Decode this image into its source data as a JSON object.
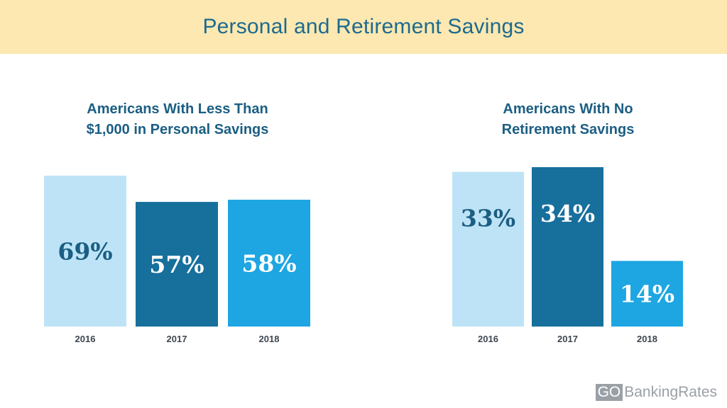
{
  "header": {
    "title": "Personal and Retirement Savings"
  },
  "colors": {
    "light": "#bee3f6",
    "dark": "#176f9c",
    "medium": "#1ea6e2",
    "value_dark_text": "#1b5e83",
    "value_light_text": "#ffffff"
  },
  "chart_data": [
    {
      "type": "bar",
      "title_lines": [
        "Americans With Less Than",
        "$1,000 in Personal Savings"
      ],
      "categories": [
        "2016",
        "2017",
        "2018"
      ],
      "values": [
        69,
        57,
        58
      ],
      "value_labels": [
        "69%",
        "57%",
        "58%"
      ],
      "ylim": [
        0,
        69
      ],
      "grid": false
    },
    {
      "type": "bar",
      "title_lines": [
        "Americans With No",
        "Retirement Savings"
      ],
      "categories": [
        "2016",
        "2017",
        "2018"
      ],
      "values": [
        33,
        34,
        14
      ],
      "value_labels": [
        "33%",
        "34%",
        "14%"
      ],
      "ylim": [
        0,
        34
      ],
      "grid": false
    }
  ],
  "logo": {
    "part1": "GO",
    "part2": "BankingRates"
  }
}
